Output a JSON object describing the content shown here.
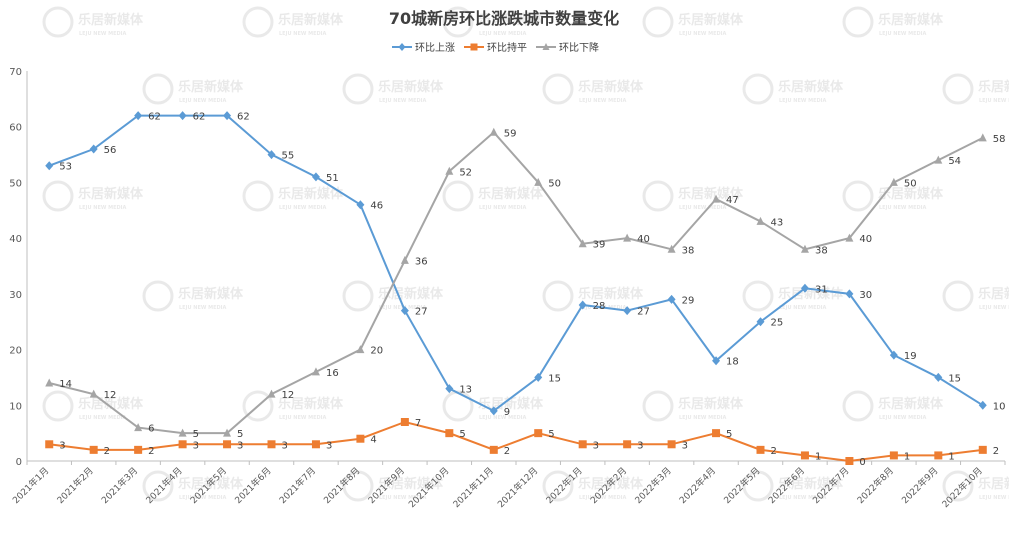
{
  "chart_data": {
    "type": "line",
    "title": "70城新房环比涨跌城市数量变化",
    "categories": [
      "2021年1月",
      "2021年2月",
      "2021年3月",
      "2021年4月",
      "2021年5月",
      "2021年6月",
      "2021年7月",
      "2021年8月",
      "2021年9月",
      "2021年10月",
      "2021年11月",
      "2021年12月",
      "2022年1月",
      "2022年2月",
      "2022年3月",
      "2022年4月",
      "2022年5月",
      "2022年6月",
      "2022年7月",
      "2022年8月",
      "2022年9月",
      "2022年10月"
    ],
    "series": [
      {
        "name": "环比上涨",
        "color": "#5B9BD5",
        "marker": "diamond",
        "values": [
          53,
          56,
          62,
          62,
          62,
          55,
          51,
          46,
          27,
          13,
          9,
          15,
          28,
          27,
          29,
          18,
          25,
          31,
          30,
          19,
          15,
          10
        ]
      },
      {
        "name": "环比持平",
        "color": "#ED7D31",
        "marker": "square",
        "values": [
          3,
          2,
          2,
          3,
          3,
          3,
          3,
          4,
          7,
          5,
          2,
          5,
          3,
          3,
          3,
          5,
          2,
          1,
          0,
          1,
          1,
          2
        ]
      },
      {
        "name": "环比下降",
        "color": "#A5A5A5",
        "marker": "triangle",
        "values": [
          14,
          12,
          6,
          5,
          5,
          12,
          16,
          20,
          36,
          52,
          59,
          50,
          39,
          40,
          38,
          47,
          43,
          38,
          40,
          50,
          54,
          58
        ]
      }
    ],
    "ylim": [
      0,
      70
    ],
    "yticks": [
      0,
      10,
      20,
      30,
      40,
      50,
      60,
      70
    ],
    "grid": false,
    "legend": "top-center",
    "data_labels": true
  },
  "watermark": {
    "text": "乐居新媒体",
    "subtext": "LEJU NEW MEDIA"
  }
}
